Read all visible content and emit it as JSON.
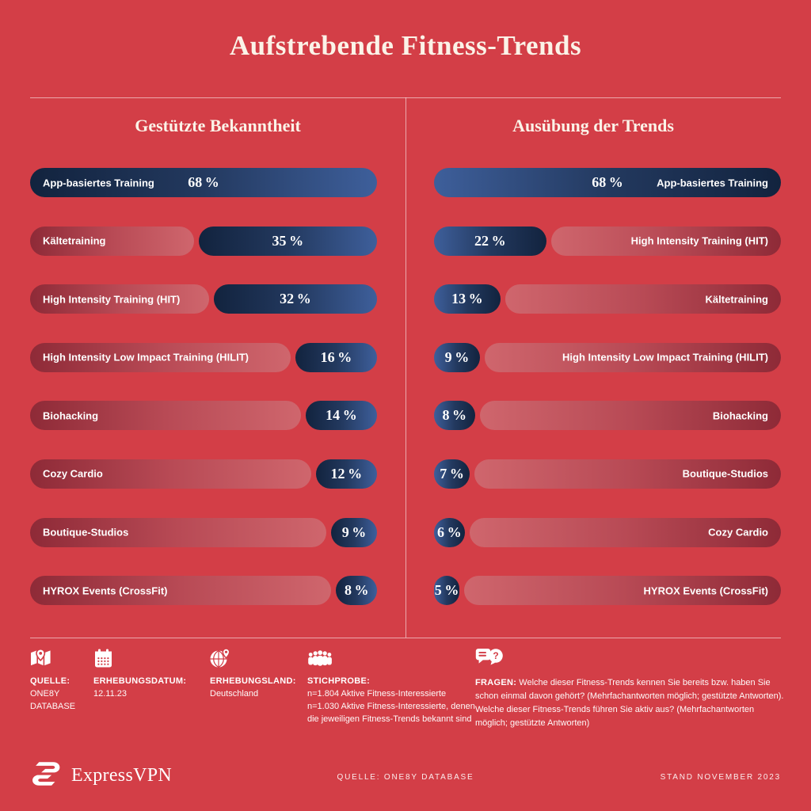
{
  "title": "Aufstrebende Fitness-Trends",
  "colors": {
    "background": "#d33e47",
    "bar_navy_dark": "#12233e",
    "bar_blue_light": "#3e5f9b",
    "track_maroon": "#8e2a37",
    "track_light": "#cf666d",
    "heading_cream": "#fbf3e8",
    "text_white": "#ffffff"
  },
  "chart_data": [
    {
      "type": "bar",
      "title": "Gestützte Bekanntheit",
      "orientation": "horizontal",
      "bar_anchor": "right",
      "unit": "%",
      "scale_max": 68,
      "categories": [
        "App-basiertes Training",
        "Kältetraining",
        "High Intensity Training (HIT)",
        "High Intensity Low Impact Training (HILIT)",
        "Biohacking",
        "Cozy Cardio",
        "Boutique-Studios",
        "HYROX Events (CrossFit)"
      ],
      "values": [
        68,
        35,
        32,
        16,
        14,
        12,
        9,
        8
      ]
    },
    {
      "type": "bar",
      "title": "Ausübung der Trends",
      "orientation": "horizontal",
      "bar_anchor": "left",
      "unit": "%",
      "scale_max": 68,
      "categories": [
        "App-basiertes Training",
        "High Intensity Training (HIT)",
        "Kältetraining",
        "High Intensity Low Impact Training (HILIT)",
        "Biohacking",
        "Boutique-Studios",
        "Cozy Cardio",
        "HYROX Events (CrossFit)"
      ],
      "values": [
        68,
        22,
        13,
        9,
        8,
        7,
        6,
        5
      ]
    }
  ],
  "footer": {
    "items": [
      {
        "icon": "map-pin-icon",
        "label": "QUELLE:",
        "text": "ONE8Y\nDATABASE"
      },
      {
        "icon": "calendar-icon",
        "label": "ERHEBUNGSDATUM:",
        "text": "12.11.23"
      },
      {
        "icon": "globe-pin-icon",
        "label": "ERHEBUNGSLAND:",
        "text": "Deutschland"
      },
      {
        "icon": "people-icon",
        "label": "STICHPROBE:",
        "text": "n=1.804 Aktive Fitness-Interessierte\nn=1.030 Aktive Fitness-Interessierte, denen die jeweiligen Fitness-Trends bekannt sind"
      },
      {
        "icon": "chat-question-icon",
        "label": "FRAGEN:",
        "text": "Welche dieser Fitness-Trends kennen Sie bereits bzw. haben Sie schon einmal davon gehört? (Mehrfachantworten möglich; gestützte Antworten). Welche dieser Fitness-Trends führen Sie aktiv aus? (Mehrfachantworten möglich; gestütz­te Antworten)"
      }
    ]
  },
  "bottom_bar": {
    "brand": "ExpressVPN",
    "source": "QUELLE: ONE8Y DATABASE",
    "stand": "STAND NOVEMBER 2023"
  }
}
